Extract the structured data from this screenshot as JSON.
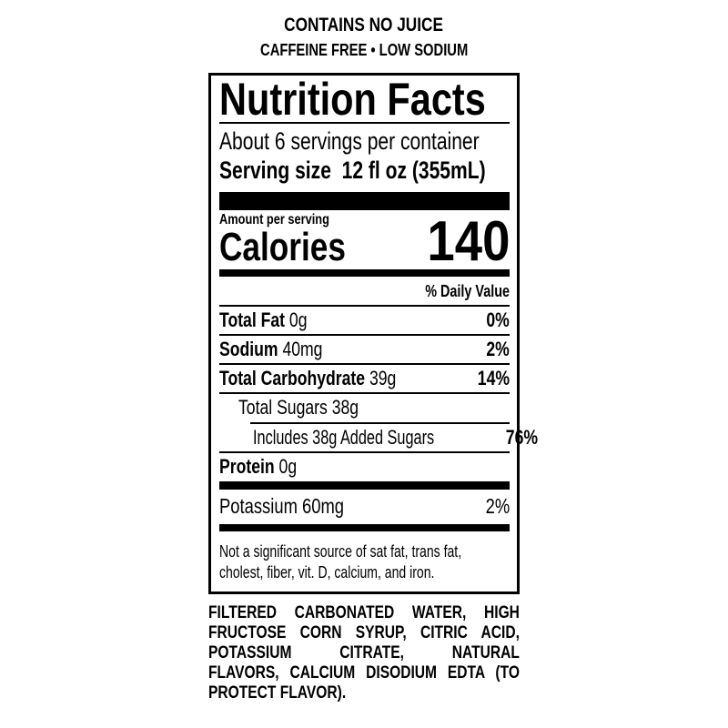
{
  "header": {
    "line1": "CONTAINS NO JUICE",
    "line2": "CAFFEINE FREE • LOW SODIUM"
  },
  "label": {
    "title": "Nutrition Facts",
    "servings": "About 6 servings per container",
    "serving_size_label": "Serving size",
    "serving_size_value": "12 fl oz (355mL)",
    "amount_per_serving": "Amount per serving",
    "calories_label": "Calories",
    "calories_value": "140",
    "daily_value_header": "% Daily Value",
    "nutrients": [
      {
        "name": "Total Fat",
        "amount": "0g",
        "dv": "0%"
      },
      {
        "name": "Sodium",
        "amount": "40mg",
        "dv": "2%"
      },
      {
        "name": "Total Carbohydrate",
        "amount": "39g",
        "dv": "14%"
      },
      {
        "name": "Total Sugars 38g"
      },
      {
        "name": "Includes 38g Added Sugars",
        "dv": "76%"
      },
      {
        "name": "Protein",
        "amount": "0g"
      },
      {
        "name": "Potassium 60mg",
        "dv": "2%"
      }
    ],
    "footnote_lines": [
      "Not a significant source of sat fat, trans fat,",
      "cholest, fiber, vit. D, calcium, and iron."
    ]
  },
  "ingredients_lines": [
    "FILTERED CARBONATED WATER, HIGH",
    "FRUCTOSE CORN SYRUP, CITRIC ACID,",
    "POTASSIUM CITRATE, NATURAL",
    "FLAVORS, CALCIUM DISODIUM EDTA (TO",
    "PROTECT FLAVOR)."
  ]
}
